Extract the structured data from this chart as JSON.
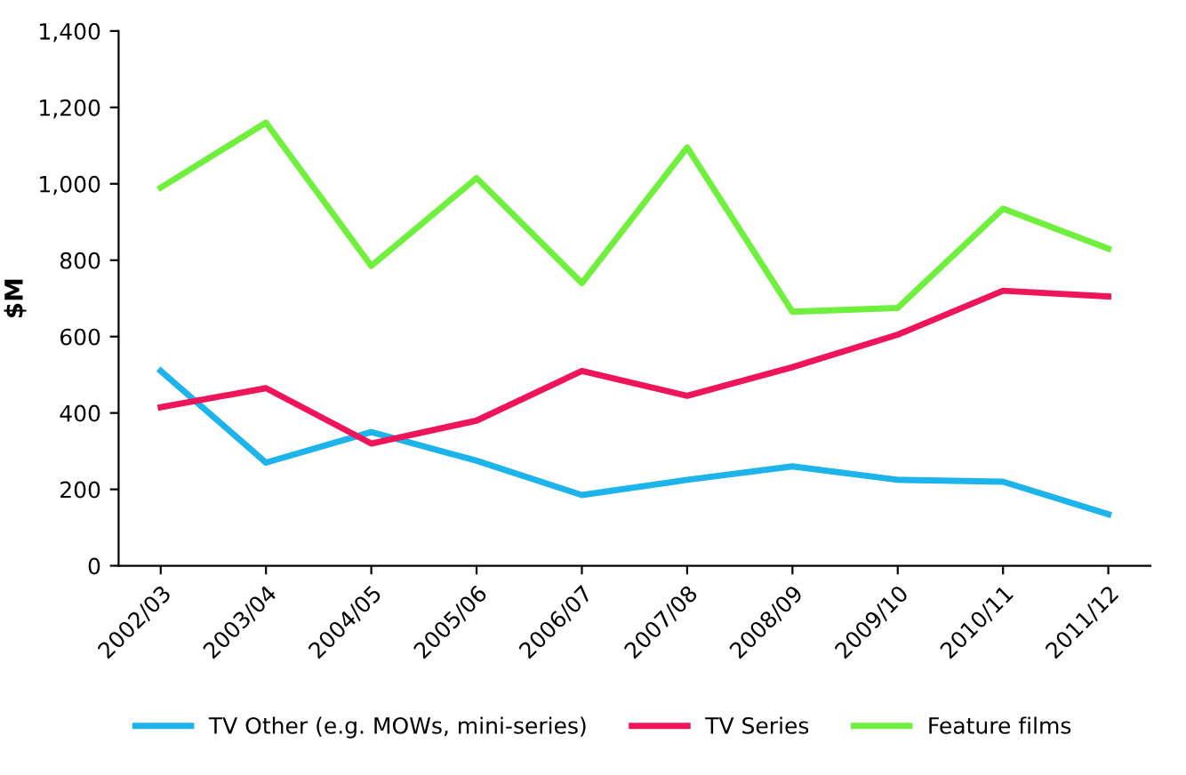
{
  "chart_data": {
    "type": "line",
    "ylabel": "$M",
    "categories": [
      "2002/03",
      "2003/04",
      "2004/05",
      "2005/06",
      "2006/07",
      "2007/08",
      "2008/09",
      "2009/10",
      "2010/11",
      "2011/12"
    ],
    "series": [
      {
        "name": "TV Other (e.g. MOWs, mini-series)",
        "color": "#1cb4ea",
        "values": [
          510,
          270,
          350,
          275,
          185,
          225,
          260,
          225,
          220,
          135
        ]
      },
      {
        "name": "TV Series",
        "color": "#f0145a",
        "values": [
          415,
          465,
          320,
          380,
          510,
          445,
          520,
          605,
          720,
          705
        ]
      },
      {
        "name": "Feature films",
        "color": "#6ef03c",
        "values": [
          990,
          1160,
          785,
          1015,
          740,
          1095,
          665,
          675,
          935,
          830
        ]
      }
    ],
    "ylim": [
      0,
      1400
    ],
    "yticks": [
      {
        "value": 0,
        "label": "0"
      },
      {
        "value": 200,
        "label": "200"
      },
      {
        "value": 400,
        "label": "400"
      },
      {
        "value": 600,
        "label": "600"
      },
      {
        "value": 800,
        "label": "800"
      },
      {
        "value": 1000,
        "label": "1,000"
      },
      {
        "value": 1200,
        "label": "1,200"
      },
      {
        "value": 1400,
        "label": "1,400"
      }
    ],
    "grid": false,
    "legend": "bottom",
    "marker": "none",
    "line_style": "solid"
  }
}
